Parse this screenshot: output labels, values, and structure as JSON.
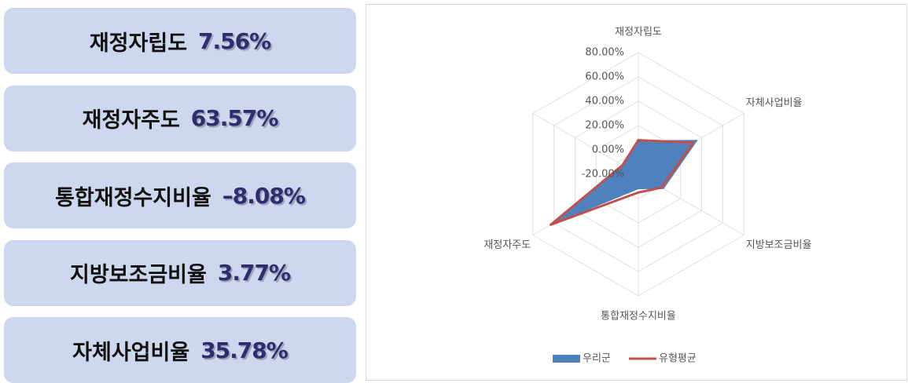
{
  "cards": [
    {
      "label": "재정자립도",
      "value": "7.56%"
    },
    {
      "label": "재정자주도",
      "value": "63.57%"
    },
    {
      "label": "통합재정수지비율",
      "value": "–8.08%"
    },
    {
      "label": "지방보조금비율",
      "value": "3.77%"
    },
    {
      "label": "자체사업비율",
      "value": "35.78%"
    }
  ],
  "chart_data": {
    "type": "radar",
    "categories": [
      "재정자립도",
      "자체사업비율",
      "지방보조금비율",
      "통합재정수지비율",
      "재정자주도",
      null
    ],
    "series": [
      {
        "name": "우리군",
        "color": "#4f81bd",
        "values": [
          7.56,
          35.78,
          3.77,
          -8.08,
          63.57,
          -5
        ]
      },
      {
        "name": "유형평균",
        "color": "#c0504d",
        "values": [
          8,
          32,
          2,
          -5,
          63,
          -5
        ]
      }
    ],
    "rlim": [
      -20,
      80
    ],
    "rticks": [
      {
        "value": -20,
        "label": "-20.00%"
      },
      {
        "value": 0,
        "label": "0.00%"
      },
      {
        "value": 20,
        "label": "20.00%"
      },
      {
        "value": 40,
        "label": "40.00%"
      },
      {
        "value": 60,
        "label": "60.00%"
      },
      {
        "value": 80,
        "label": "80.00%"
      }
    ],
    "grid": true,
    "legend": "bottom"
  }
}
